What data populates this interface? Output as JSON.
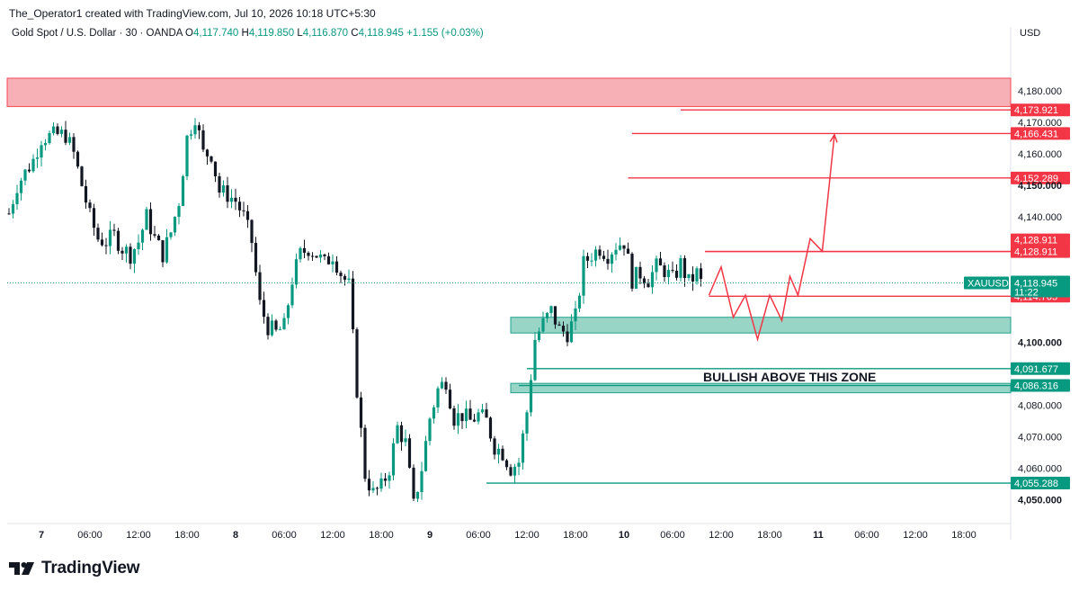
{
  "header": {
    "credit": "The_Operator1 created with TradingView.com, Jul 10, 2026 10:18 UTC+5:30",
    "symbol_line": "Gold Spot / U.S. Dollar · 30 · OANDA",
    "ohlc": {
      "o_label": "O",
      "o": "4,117.740",
      "h_label": "H",
      "h": "4,119.850",
      "l_label": "L",
      "l": "4,116.870",
      "c_label": "C",
      "c": "4,118.945",
      "change": "+1.155 (+0.03%)"
    },
    "currency": "USD"
  },
  "logo": {
    "text": "TradingView"
  },
  "colors": {
    "up": "#089981",
    "down": "#131722",
    "red": "#f23645",
    "zone_red": "#f7a8ae",
    "zone_green": "#8fd1c1",
    "green_line": "#089981"
  },
  "chart_data": {
    "type": "candlestick",
    "symbol": "XAUUSD",
    "ylim": [
      4043,
      4196
    ],
    "y_ticks": [
      {
        "value": 4180,
        "label": "4,180.000",
        "bold": false
      },
      {
        "value": 4170,
        "label": "4,170.000",
        "bold": false
      },
      {
        "value": 4160,
        "label": "4,160.000",
        "bold": false
      },
      {
        "value": 4150,
        "label": "4,150.000",
        "bold": true
      },
      {
        "value": 4140,
        "label": "4,140.000",
        "bold": false
      },
      {
        "value": 4100,
        "label": "4,100.000",
        "bold": true
      },
      {
        "value": 4080,
        "label": "4,080.000",
        "bold": false
      },
      {
        "value": 4070,
        "label": "4,070.000",
        "bold": false
      },
      {
        "value": 4060,
        "label": "4,060.000",
        "bold": false
      },
      {
        "value": 4050,
        "label": "4,050.000",
        "bold": true
      }
    ],
    "x_ticks": [
      {
        "label": "7",
        "bold": true,
        "t": 0
      },
      {
        "label": "06:00",
        "bold": false,
        "t": 6
      },
      {
        "label": "12:00",
        "bold": false,
        "t": 12
      },
      {
        "label": "18:00",
        "bold": false,
        "t": 18
      },
      {
        "label": "8",
        "bold": true,
        "t": 24
      },
      {
        "label": "06:00",
        "bold": false,
        "t": 30
      },
      {
        "label": "12:00",
        "bold": false,
        "t": 36
      },
      {
        "label": "18:00",
        "bold": false,
        "t": 42
      },
      {
        "label": "9",
        "bold": true,
        "t": 48
      },
      {
        "label": "06:00",
        "bold": false,
        "t": 54
      },
      {
        "label": "12:00",
        "bold": false,
        "t": 60
      },
      {
        "label": "18:00",
        "bold": false,
        "t": 66
      },
      {
        "label": "10",
        "bold": true,
        "t": 72
      },
      {
        "label": "06:00",
        "bold": false,
        "t": 78
      },
      {
        "label": "12:00",
        "bold": false,
        "t": 84
      },
      {
        "label": "18:00",
        "bold": false,
        "t": 90
      },
      {
        "label": "11",
        "bold": true,
        "t": 96
      },
      {
        "label": "06:00",
        "bold": false,
        "t": 102
      },
      {
        "label": "12:00",
        "bold": false,
        "t": 108
      },
      {
        "label": "18:00",
        "bold": false,
        "t": 114
      }
    ],
    "candle_anchors": [
      [
        -4,
        4141
      ],
      [
        -3,
        4150
      ],
      [
        -1,
        4158
      ],
      [
        0,
        4165
      ],
      [
        2,
        4166
      ],
      [
        3,
        4166
      ],
      [
        4,
        4160
      ],
      [
        5,
        4150
      ],
      [
        6,
        4140
      ],
      [
        7,
        4133
      ],
      [
        8,
        4132
      ],
      [
        9,
        4134
      ],
      [
        10,
        4130
      ],
      [
        11,
        4128
      ],
      [
        12,
        4132
      ],
      [
        13,
        4140
      ],
      [
        14,
        4133
      ],
      [
        15,
        4128
      ],
      [
        16,
        4135
      ],
      [
        17,
        4145
      ],
      [
        18,
        4165
      ],
      [
        19,
        4172
      ],
      [
        20,
        4160
      ],
      [
        21,
        4160
      ],
      [
        22,
        4148
      ],
      [
        23,
        4147
      ],
      [
        24,
        4145
      ],
      [
        25,
        4140
      ],
      [
        26,
        4132
      ],
      [
        27,
        4112
      ],
      [
        28,
        4105
      ],
      [
        29,
        4103
      ],
      [
        30,
        4105
      ],
      [
        31,
        4120
      ],
      [
        32,
        4128
      ],
      [
        33,
        4130
      ],
      [
        34,
        4128
      ],
      [
        35,
        4125
      ],
      [
        36,
        4128
      ],
      [
        37,
        4122
      ],
      [
        38,
        4118
      ],
      [
        39,
        4085
      ],
      [
        40,
        4058
      ],
      [
        41,
        4052
      ],
      [
        42,
        4054
      ],
      [
        43,
        4060
      ],
      [
        44,
        4073
      ],
      [
        45,
        4068
      ],
      [
        46,
        4048
      ],
      [
        47,
        4060
      ],
      [
        48,
        4076
      ],
      [
        49,
        4085
      ],
      [
        50,
        4088
      ],
      [
        51,
        4076
      ],
      [
        52,
        4077
      ],
      [
        53,
        4075
      ],
      [
        54,
        4077
      ],
      [
        55,
        4075
      ],
      [
        56,
        4067
      ],
      [
        57,
        4065
      ],
      [
        58,
        4060
      ],
      [
        59,
        4062
      ],
      [
        60,
        4078
      ],
      [
        61,
        4101
      ],
      [
        62,
        4106
      ],
      [
        63,
        4110
      ],
      [
        64,
        4104
      ],
      [
        65,
        4103
      ],
      [
        66,
        4108
      ],
      [
        67,
        4125
      ],
      [
        68,
        4128
      ],
      [
        69,
        4130
      ],
      [
        70,
        4128
      ],
      [
        71,
        4131
      ],
      [
        72,
        4132
      ],
      [
        73,
        4120
      ],
      [
        74,
        4122
      ],
      [
        75,
        4120
      ],
      [
        76,
        4124
      ],
      [
        77,
        4123
      ],
      [
        78,
        4120
      ],
      [
        79,
        4125
      ],
      [
        80,
        4119
      ],
      [
        81,
        4122
      ],
      [
        82,
        4116
      ]
    ],
    "zones": [
      {
        "name": "supply-zone",
        "y1": 4175,
        "y2": 4184,
        "color": "red"
      },
      {
        "name": "demand-zone-upper",
        "y1": 4103,
        "y2": 4108,
        "color": "green"
      },
      {
        "name": "demand-zone-lower",
        "y1": 4084,
        "y2": 4087,
        "color": "green"
      }
    ],
    "levels": [
      {
        "value": 4173.921,
        "label": "4,173.921",
        "color": "red",
        "t0": 79
      },
      {
        "value": 4166.431,
        "label": "4,166.431",
        "color": "red",
        "t0": 73
      },
      {
        "value": 4152.289,
        "label": "4,152.289",
        "color": "red",
        "t0": 72.5
      },
      {
        "value": 4128.911,
        "label": "4,128.911",
        "color": "red",
        "t0": 82,
        "tag_offset": -13
      },
      {
        "value": 4128.911,
        "label": "4,128.911",
        "color": "red",
        "t0": 82
      },
      {
        "value": 4114.705,
        "label": "4,114.705",
        "color": "red",
        "t0": 82.5
      },
      {
        "value": 4091.677,
        "label": "4,091.677",
        "color": "green",
        "t0": 60
      },
      {
        "value": 4086.316,
        "label": "4,086.316",
        "color": "green",
        "t0": 59
      },
      {
        "value": 4055.288,
        "label": "4,055.288",
        "color": "green",
        "t0": 55
      }
    ],
    "last_price": {
      "symbol": "XAUUSD",
      "value": 4118.945,
      "label": "4,118.945",
      "countdown": "11:22"
    },
    "projection_path": [
      [
        82.5,
        4115
      ],
      [
        84,
        4124
      ],
      [
        85.5,
        4108
      ],
      [
        87,
        4115
      ],
      [
        88.5,
        4101
      ],
      [
        90,
        4115
      ],
      [
        91.5,
        4107
      ],
      [
        92.5,
        4121
      ],
      [
        93.5,
        4115
      ],
      [
        95,
        4133
      ],
      [
        96.5,
        4129
      ],
      [
        98,
        4166
      ]
    ],
    "annotation": {
      "text": "BULLISH ABOVE THIS ZONE",
      "value": 4089,
      "t": 83
    }
  }
}
